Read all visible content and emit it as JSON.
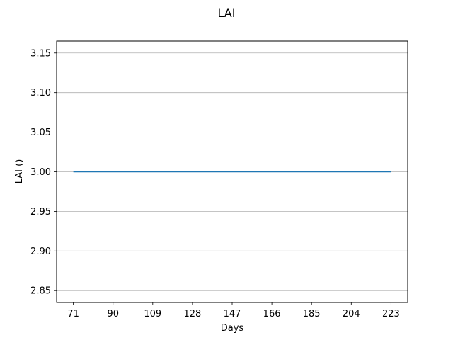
{
  "chart_data": {
    "type": "line",
    "title": "LAI",
    "xlabel": "Days",
    "ylabel": "LAI ()",
    "xlim": [
      63,
      231
    ],
    "ylim": [
      2.835,
      3.165
    ],
    "x_ticks": [
      71,
      90,
      109,
      128,
      147,
      166,
      185,
      204,
      223
    ],
    "y_ticks": [
      2.85,
      2.9,
      2.95,
      3.0,
      3.05,
      3.1,
      3.15
    ],
    "y_tick_labels": [
      "2.85",
      "2.90",
      "2.95",
      "3.00",
      "3.05",
      "3.10",
      "3.15"
    ],
    "grid": "horizontal",
    "series": [
      {
        "color": "#1f77b4",
        "x": [
          71,
          223
        ],
        "y": [
          3.0,
          3.0
        ]
      }
    ]
  }
}
